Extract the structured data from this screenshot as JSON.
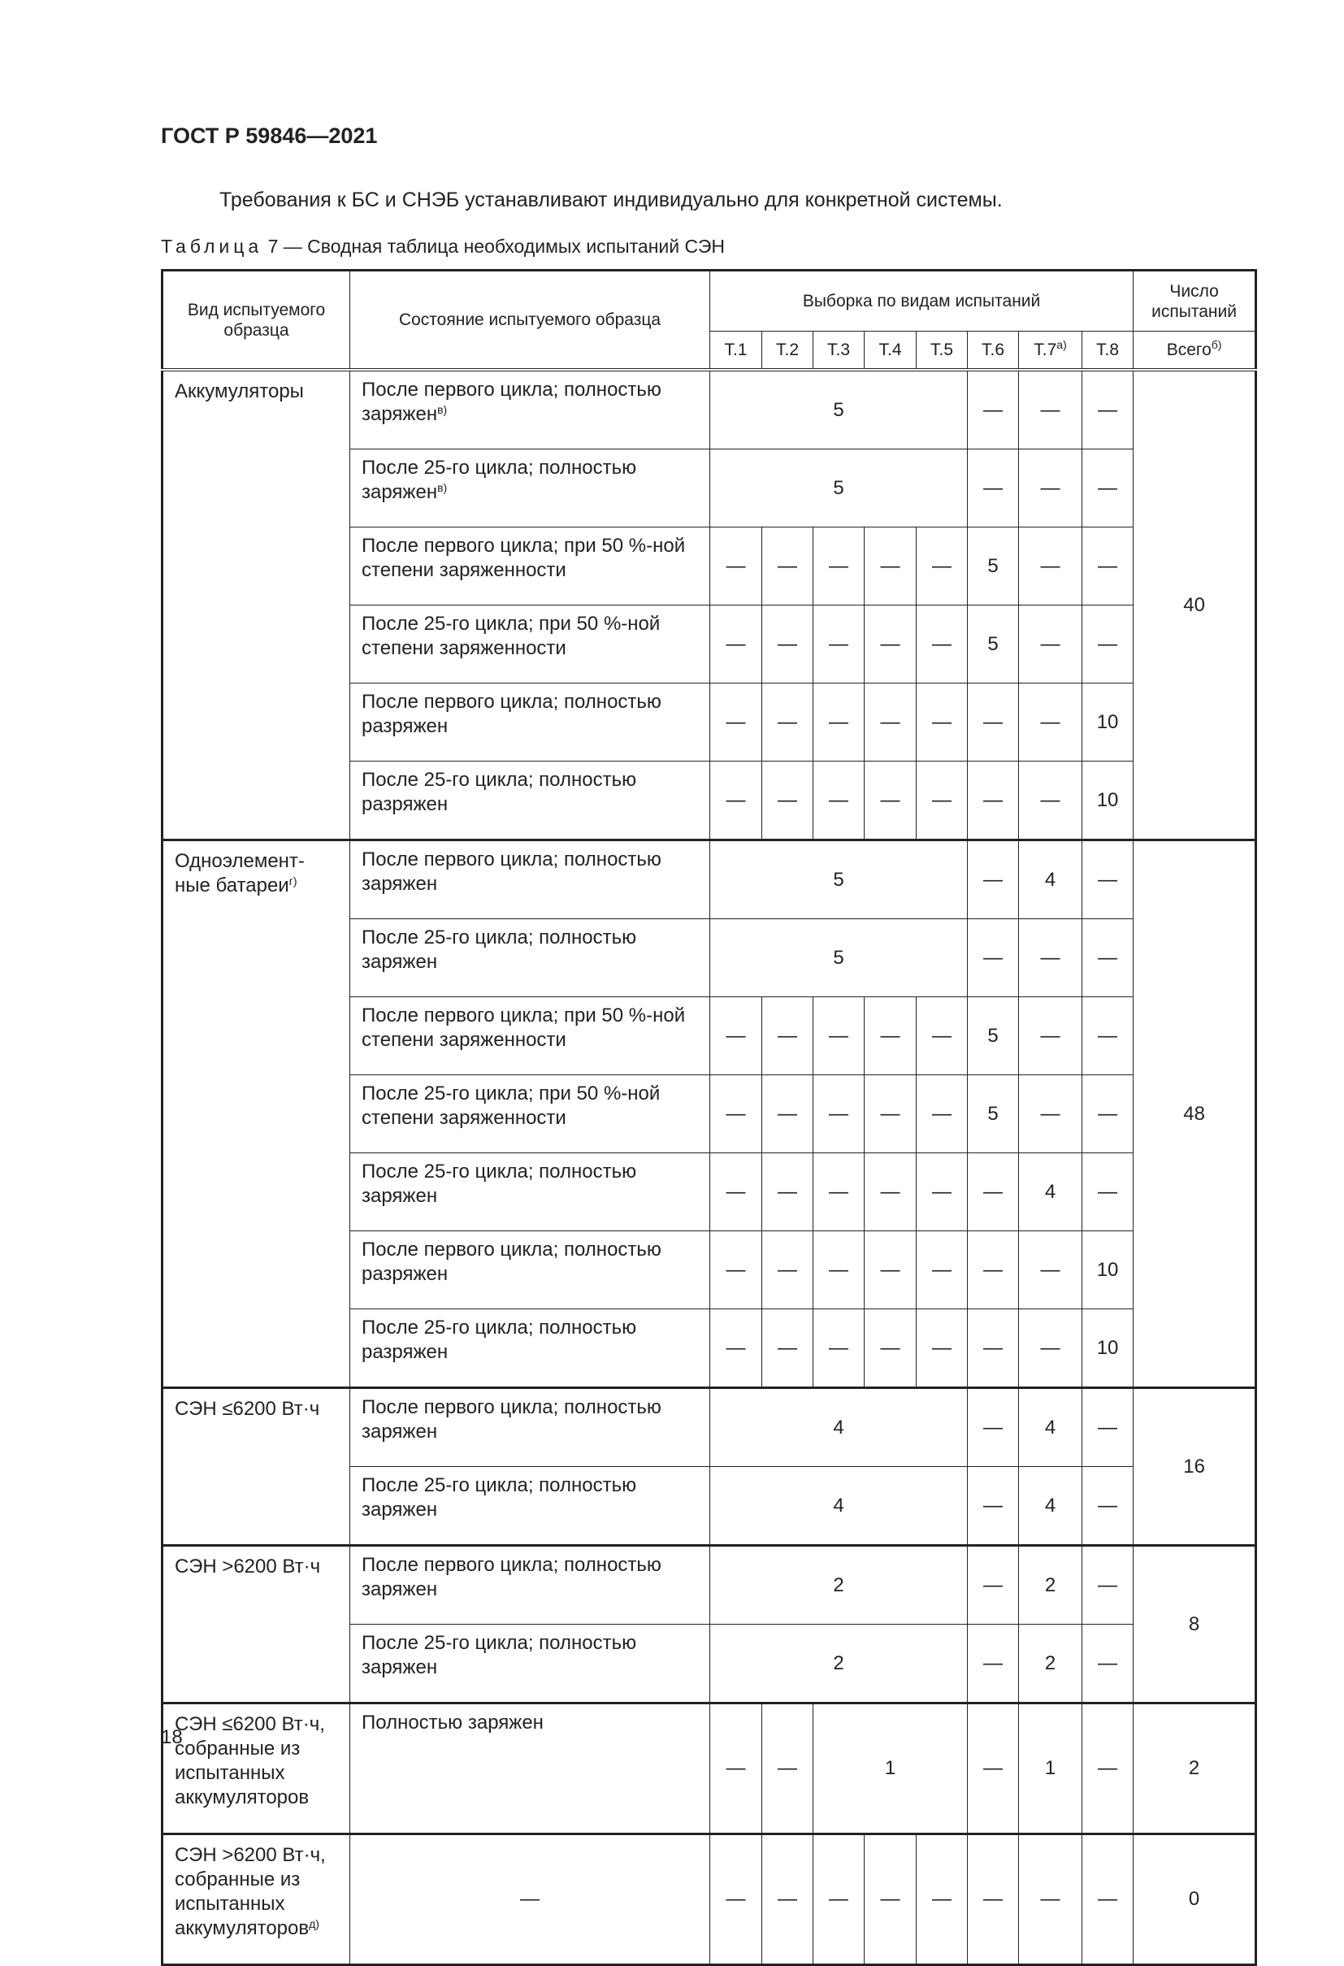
{
  "document": {
    "standard": "ГОСТ Р 59846—2021",
    "paragraph": "Требования к БС и СНЭБ устанавливают индивидуально для конкретной системы.",
    "caption_label": "Таблица",
    "caption_text": "7 — Сводная таблица необходимых испытаний СЭН",
    "page_number": "18"
  },
  "table": {
    "headers": {
      "type": "Вид испытуемого образца",
      "state": "Состояние испытуемого образца",
      "sample": "Выборка по видам испытаний",
      "count": "Число испытаний",
      "tests": [
        {
          "label": "Т.1",
          "sup": ""
        },
        {
          "label": "Т.2",
          "sup": ""
        },
        {
          "label": "Т.3",
          "sup": ""
        },
        {
          "label": "Т.4",
          "sup": ""
        },
        {
          "label": "Т.5",
          "sup": ""
        },
        {
          "label": "Т.6",
          "sup": ""
        },
        {
          "label": "Т.7",
          "sup": "а)"
        },
        {
          "label": "Т.8",
          "sup": ""
        }
      ],
      "total": "Всего",
      "total_sup": "б)"
    },
    "groups": [
      {
        "name": "Аккумуляторы",
        "sup": "",
        "total": "40",
        "rows": [
          {
            "state": "После первого цикла; полностью заряжен",
            "sup": "в)",
            "cells": [
              {
                "v": "5",
                "span": 5
              },
              {
                "v": "—"
              },
              {
                "v": "—"
              },
              {
                "v": "—"
              }
            ]
          },
          {
            "state": "После 25-го цикла; полностью заряжен",
            "sup": "в)",
            "cells": [
              {
                "v": "5",
                "span": 5
              },
              {
                "v": "—"
              },
              {
                "v": "—"
              },
              {
                "v": "—"
              }
            ]
          },
          {
            "state": "После первого цикла; при 50 %-ной степени заряженности",
            "sup": "",
            "cells": [
              {
                "v": "—"
              },
              {
                "v": "—"
              },
              {
                "v": "—"
              },
              {
                "v": "—"
              },
              {
                "v": "—"
              },
              {
                "v": "5"
              },
              {
                "v": "—"
              },
              {
                "v": "—"
              }
            ]
          },
          {
            "state": "После 25-го цикла; при 50 %-ной степени заряженности",
            "sup": "",
            "cells": [
              {
                "v": "—"
              },
              {
                "v": "—"
              },
              {
                "v": "—"
              },
              {
                "v": "—"
              },
              {
                "v": "—"
              },
              {
                "v": "5"
              },
              {
                "v": "—"
              },
              {
                "v": "—"
              }
            ]
          },
          {
            "state": "После первого цикла; полностью разряжен",
            "sup": "",
            "cells": [
              {
                "v": "—"
              },
              {
                "v": "—"
              },
              {
                "v": "—"
              },
              {
                "v": "—"
              },
              {
                "v": "—"
              },
              {
                "v": "—"
              },
              {
                "v": "—"
              },
              {
                "v": "10"
              }
            ]
          },
          {
            "state": "После 25-го цикла; полностью разряжен",
            "sup": "",
            "cells": [
              {
                "v": "—"
              },
              {
                "v": "—"
              },
              {
                "v": "—"
              },
              {
                "v": "—"
              },
              {
                "v": "—"
              },
              {
                "v": "—"
              },
              {
                "v": "—"
              },
              {
                "v": "10"
              }
            ]
          }
        ]
      },
      {
        "name": "Одноэлемент-ные батареи",
        "sup": "г)",
        "total": "48",
        "rows": [
          {
            "state": "После первого цикла; полностью заряжен",
            "sup": "",
            "cells": [
              {
                "v": "5",
                "span": 5
              },
              {
                "v": "—"
              },
              {
                "v": "4"
              },
              {
                "v": "—"
              }
            ]
          },
          {
            "state": "После 25-го цикла; полностью заряжен",
            "sup": "",
            "cells": [
              {
                "v": "5",
                "span": 5
              },
              {
                "v": "—"
              },
              {
                "v": "—"
              },
              {
                "v": "—"
              }
            ]
          },
          {
            "state": "После первого цикла; при 50 %-ной степени заряженности",
            "sup": "",
            "cells": [
              {
                "v": "—"
              },
              {
                "v": "—"
              },
              {
                "v": "—"
              },
              {
                "v": "—"
              },
              {
                "v": "—"
              },
              {
                "v": "5"
              },
              {
                "v": "—"
              },
              {
                "v": "—"
              }
            ]
          },
          {
            "state": "После 25-го цикла; при 50 %-ной степени заряженности",
            "sup": "",
            "cells": [
              {
                "v": "—"
              },
              {
                "v": "—"
              },
              {
                "v": "—"
              },
              {
                "v": "—"
              },
              {
                "v": "—"
              },
              {
                "v": "5"
              },
              {
                "v": "—"
              },
              {
                "v": "—"
              }
            ]
          },
          {
            "state": "После 25-го цикла; полностью заряжен",
            "sup": "",
            "cells": [
              {
                "v": "—"
              },
              {
                "v": "—"
              },
              {
                "v": "—"
              },
              {
                "v": "—"
              },
              {
                "v": "—"
              },
              {
                "v": "—"
              },
              {
                "v": "4"
              },
              {
                "v": "—"
              }
            ]
          },
          {
            "state": "После первого цикла; полностью разряжен",
            "sup": "",
            "cells": [
              {
                "v": "—"
              },
              {
                "v": "—"
              },
              {
                "v": "—"
              },
              {
                "v": "—"
              },
              {
                "v": "—"
              },
              {
                "v": "—"
              },
              {
                "v": "—"
              },
              {
                "v": "10"
              }
            ]
          },
          {
            "state": "После 25-го цикла; полностью разряжен",
            "sup": "",
            "cells": [
              {
                "v": "—"
              },
              {
                "v": "—"
              },
              {
                "v": "—"
              },
              {
                "v": "—"
              },
              {
                "v": "—"
              },
              {
                "v": "—"
              },
              {
                "v": "—"
              },
              {
                "v": "10"
              }
            ]
          }
        ]
      },
      {
        "name": "СЭН ≤6200 Вт·ч",
        "sup": "",
        "total": "16",
        "rows": [
          {
            "state": "После первого цикла; полностью заряжен",
            "sup": "",
            "cells": [
              {
                "v": "4",
                "span": 5
              },
              {
                "v": "—"
              },
              {
                "v": "4"
              },
              {
                "v": "—"
              }
            ]
          },
          {
            "state": "После 25-го цикла; полностью заряжен",
            "sup": "",
            "cells": [
              {
                "v": "4",
                "span": 5
              },
              {
                "v": "—"
              },
              {
                "v": "4"
              },
              {
                "v": "—"
              }
            ]
          }
        ]
      },
      {
        "name": "СЭН >6200 Вт·ч",
        "sup": "",
        "total": "8",
        "rows": [
          {
            "state": "После первого цикла; полностью заряжен",
            "sup": "",
            "cells": [
              {
                "v": "2",
                "span": 5
              },
              {
                "v": "—"
              },
              {
                "v": "2"
              },
              {
                "v": "—"
              }
            ]
          },
          {
            "state": "После 25-го цикла; полностью заряжен",
            "sup": "",
            "cells": [
              {
                "v": "2",
                "span": 5
              },
              {
                "v": "—"
              },
              {
                "v": "2"
              },
              {
                "v": "—"
              }
            ]
          }
        ]
      },
      {
        "name": "СЭН ≤6200 Вт·ч, собранные из испытанных аккумуляторов",
        "sup": "",
        "total": "2",
        "tall": true,
        "rows": [
          {
            "state": "Полностью заряжен",
            "sup": "",
            "cells": [
              {
                "v": "—"
              },
              {
                "v": "—"
              },
              {
                "v": "1",
                "span": 3
              },
              {
                "v": "—"
              },
              {
                "v": "1"
              },
              {
                "v": "—"
              }
            ]
          }
        ]
      },
      {
        "name": "СЭН >6200 Вт·ч, собранные из испытанных аккумуляторов",
        "sup": "д)",
        "total": "0",
        "tall": true,
        "state_centered": true,
        "rows": [
          {
            "state": "—",
            "sup": "",
            "cells": [
              {
                "v": "—"
              },
              {
                "v": "—"
              },
              {
                "v": "—"
              },
              {
                "v": "—"
              },
              {
                "v": "—"
              },
              {
                "v": "—"
              },
              {
                "v": "—"
              },
              {
                "v": "—"
              }
            ]
          }
        ]
      }
    ]
  }
}
